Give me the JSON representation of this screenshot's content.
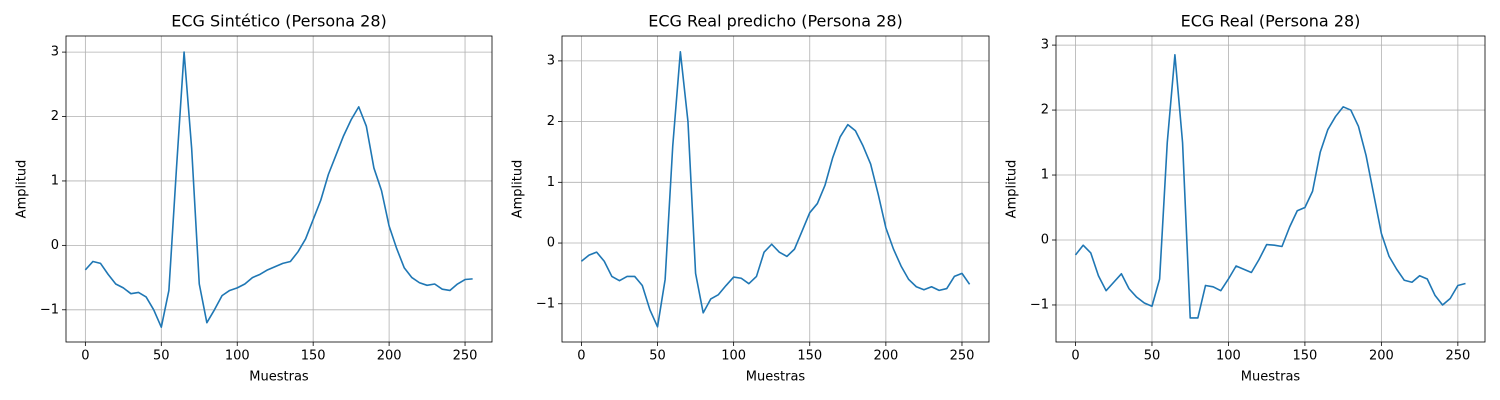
{
  "chart_data": [
    {
      "type": "line",
      "title": "ECG Sintético (Persona 28)",
      "xlabel": "Muestras",
      "ylabel": "Amplitud",
      "color": "#1f77b4",
      "grid": true,
      "x": [
        0,
        5,
        10,
        15,
        20,
        25,
        30,
        35,
        40,
        45,
        50,
        55,
        60,
        65,
        70,
        75,
        80,
        85,
        90,
        95,
        100,
        105,
        110,
        115,
        120,
        125,
        130,
        135,
        140,
        145,
        150,
        155,
        160,
        165,
        170,
        175,
        180,
        185,
        190,
        195,
        200,
        205,
        210,
        215,
        220,
        225,
        230,
        235,
        240,
        245,
        250,
        255
      ],
      "values": [
        -0.38,
        -0.25,
        -0.28,
        -0.45,
        -0.6,
        -0.66,
        -0.75,
        -0.73,
        -0.8,
        -1.0,
        -1.27,
        -0.7,
        1.2,
        3.0,
        1.5,
        -0.6,
        -1.2,
        -1.0,
        -0.78,
        -0.7,
        -0.66,
        -0.6,
        -0.5,
        -0.45,
        -0.38,
        -0.33,
        -0.28,
        -0.25,
        -0.1,
        0.1,
        0.4,
        0.7,
        1.1,
        1.4,
        1.7,
        1.95,
        2.15,
        1.85,
        1.2,
        0.85,
        0.3,
        -0.05,
        -0.35,
        -0.5,
        -0.58,
        -0.62,
        -0.6,
        -0.68,
        -0.7,
        -0.6,
        -0.53,
        -0.52
      ],
      "xlim": [
        -12.75,
        267.75
      ],
      "xticks": [
        0,
        50,
        100,
        150,
        200,
        250
      ],
      "ylim": [
        -1.5,
        3.25
      ],
      "yticks": [
        {
          "value": -1,
          "label": "−1"
        },
        0,
        1,
        2,
        3
      ]
    },
    {
      "type": "line",
      "title": "ECG Real predicho (Persona 28)",
      "xlabel": "Muestras",
      "ylabel": "Amplitud",
      "color": "#1f77b4",
      "grid": true,
      "x": [
        0,
        5,
        10,
        15,
        20,
        25,
        30,
        35,
        40,
        45,
        50,
        55,
        60,
        65,
        70,
        75,
        80,
        85,
        90,
        95,
        100,
        105,
        110,
        115,
        120,
        125,
        130,
        135,
        140,
        145,
        150,
        155,
        160,
        165,
        170,
        175,
        180,
        185,
        190,
        195,
        200,
        205,
        210,
        215,
        220,
        225,
        230,
        235,
        240,
        245,
        250,
        255
      ],
      "values": [
        -0.3,
        -0.2,
        -0.15,
        -0.3,
        -0.55,
        -0.62,
        -0.55,
        -0.55,
        -0.7,
        -1.1,
        -1.38,
        -0.6,
        1.6,
        3.15,
        2.0,
        -0.5,
        -1.15,
        -0.92,
        -0.85,
        -0.7,
        -0.56,
        -0.58,
        -0.67,
        -0.55,
        -0.15,
        -0.02,
        -0.15,
        -0.22,
        -0.1,
        0.2,
        0.5,
        0.65,
        0.95,
        1.4,
        1.75,
        1.95,
        1.85,
        1.6,
        1.3,
        0.8,
        0.25,
        -0.1,
        -0.38,
        -0.6,
        -0.72,
        -0.77,
        -0.72,
        -0.78,
        -0.75,
        -0.55,
        -0.5,
        -0.68
      ],
      "xlim": [
        -12.75,
        267.75
      ],
      "xticks": [
        0,
        50,
        100,
        150,
        200,
        250
      ],
      "ylim": [
        -1.63,
        3.41
      ],
      "yticks": [
        {
          "value": -1,
          "label": "−1"
        },
        0,
        1,
        2,
        3
      ]
    },
    {
      "type": "line",
      "title": "ECG Real (Persona 28)",
      "xlabel": "Muestras",
      "ylabel": "Amplitud",
      "color": "#1f77b4",
      "grid": true,
      "x": [
        0,
        5,
        10,
        15,
        20,
        25,
        30,
        35,
        40,
        45,
        50,
        55,
        60,
        65,
        70,
        75,
        80,
        85,
        90,
        95,
        100,
        105,
        110,
        115,
        120,
        125,
        130,
        135,
        140,
        145,
        150,
        155,
        160,
        165,
        170,
        175,
        180,
        185,
        190,
        195,
        200,
        205,
        210,
        215,
        220,
        225,
        230,
        235,
        240,
        245,
        250,
        255
      ],
      "values": [
        -0.23,
        -0.08,
        -0.2,
        -0.55,
        -0.78,
        -0.65,
        -0.52,
        -0.75,
        -0.88,
        -0.97,
        -1.02,
        -0.6,
        1.5,
        2.85,
        1.5,
        -1.2,
        -1.2,
        -0.7,
        -0.72,
        -0.78,
        -0.6,
        -0.4,
        -0.45,
        -0.5,
        -0.3,
        -0.07,
        -0.08,
        -0.1,
        0.2,
        0.45,
        0.5,
        0.75,
        1.35,
        1.7,
        1.9,
        2.05,
        2.0,
        1.75,
        1.3,
        0.7,
        0.1,
        -0.25,
        -0.45,
        -0.62,
        -0.65,
        -0.55,
        -0.6,
        -0.85,
        -1.0,
        -0.9,
        -0.7,
        -0.67
      ],
      "xlim": [
        -12.75,
        267.75
      ],
      "xticks": [
        0,
        50,
        100,
        150,
        200,
        250
      ],
      "ylim": [
        -1.57,
        3.14
      ],
      "yticks": [
        {
          "value": -1,
          "label": "−1"
        },
        0,
        1,
        2,
        3
      ]
    }
  ]
}
